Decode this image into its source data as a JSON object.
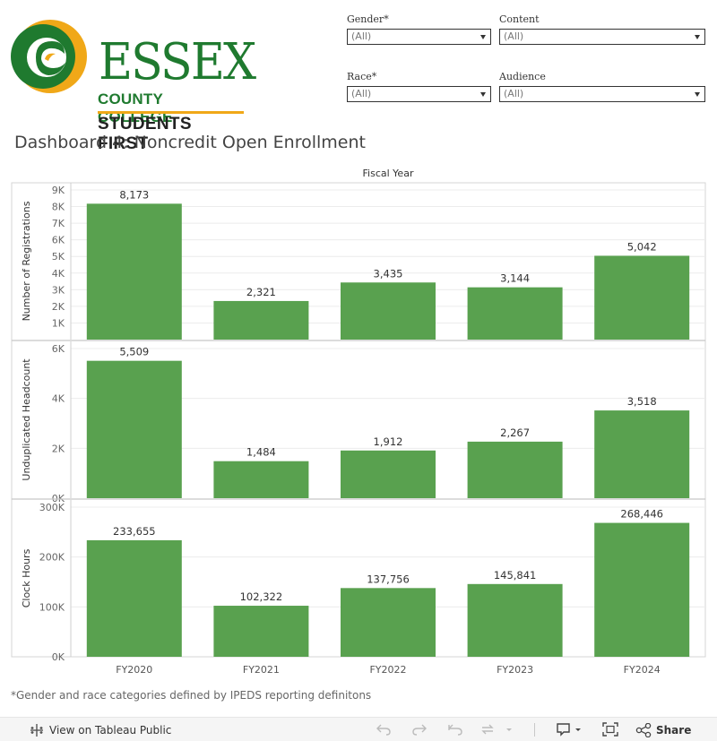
{
  "logo": {
    "line1": "ESSEX",
    "line2": "COUNTY COLLEGE",
    "line3": "STUDENTS FIRST",
    "colors": {
      "green": "#1f7a2f",
      "gold": "#f0a818"
    }
  },
  "filters": [
    {
      "label": "Gender*",
      "value": "(All)"
    },
    {
      "label": "Content",
      "value": "(All)"
    },
    {
      "label": "Race*",
      "value": "(All)"
    },
    {
      "label": "Audience",
      "value": "(All)"
    }
  ],
  "dashboard_title": "Dashboard 4: Noncredit Open Enrollment",
  "footnote": "*Gender and race categories defined by IPEDS reporting definitons",
  "toolbar": {
    "view_label": "View on Tableau Public",
    "share_label": "Share"
  },
  "chart_data": {
    "type": "bar",
    "title": "Fiscal Year",
    "categories": [
      "FY2020",
      "FY2021",
      "FY2022",
      "FY2023",
      "FY2024"
    ],
    "bar_color": "#59a14f",
    "panels": [
      {
        "ylabel": "Number of Registrations",
        "values": [
          8173,
          2321,
          3435,
          3144,
          5042
        ],
        "value_labels": [
          "8,173",
          "2,321",
          "3,435",
          "3,144",
          "5,042"
        ],
        "ylim": [
          0,
          9000
        ],
        "ticks": [
          1000,
          2000,
          3000,
          4000,
          5000,
          6000,
          7000,
          8000,
          9000
        ],
        "tick_labels": [
          "1K",
          "2K",
          "3K",
          "4K",
          "5K",
          "6K",
          "7K",
          "8K",
          "9K"
        ]
      },
      {
        "ylabel": "Unduplicated Headcount",
        "values": [
          5509,
          1484,
          1912,
          2267,
          3518
        ],
        "value_labels": [
          "5,509",
          "1,484",
          "1,912",
          "2,267",
          "3,518"
        ],
        "ylim": [
          0,
          6000
        ],
        "ticks": [
          0,
          2000,
          4000,
          6000
        ],
        "tick_labels": [
          "0K",
          "2K",
          "4K",
          "6K"
        ]
      },
      {
        "ylabel": "Clock Hours",
        "values": [
          233655,
          102322,
          137756,
          145841,
          268446
        ],
        "value_labels": [
          "233,655",
          "102,322",
          "137,756",
          "145,841",
          "268,446"
        ],
        "ylim": [
          0,
          300000
        ],
        "ticks": [
          0,
          100000,
          200000,
          300000
        ],
        "tick_labels": [
          "0K",
          "100K",
          "200K",
          "300K"
        ]
      }
    ],
    "grid": true,
    "legend": "none"
  }
}
